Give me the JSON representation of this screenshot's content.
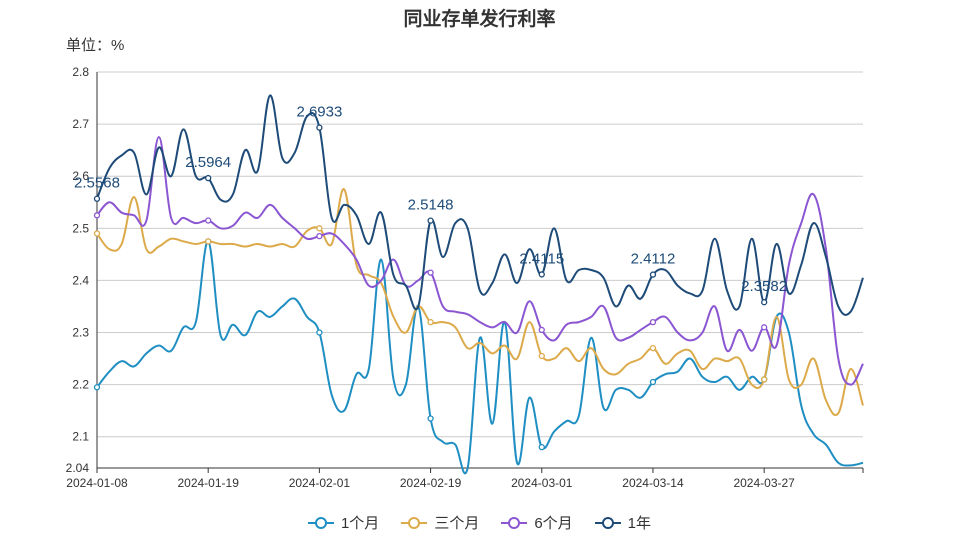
{
  "chart_data": {
    "type": "line",
    "title": "同业存单发行利率",
    "unit_label": "单位：%",
    "xlabel": "",
    "ylabel": "",
    "x_ticks": [
      "2024-01-08",
      "2024-01-19",
      "2024-02-01",
      "2024-02-19",
      "2024-03-01",
      "2024-03-14",
      "2024-03-27"
    ],
    "y_ticks": [
      "2.04",
      "2.1",
      "2.2",
      "2.3",
      "2.4",
      "2.5",
      "2.6",
      "2.7",
      "2.8"
    ],
    "ylim": [
      2.04,
      2.8
    ],
    "grid": true,
    "legend_position": "bottom",
    "series": [
      {
        "name": "1个月",
        "color": "#1f8ec2",
        "values": [
          2.195,
          2.225,
          2.245,
          2.235,
          2.26,
          2.275,
          2.265,
          2.31,
          2.32,
          2.475,
          2.295,
          2.315,
          2.295,
          2.34,
          2.33,
          2.35,
          2.365,
          2.33,
          2.3,
          2.18,
          2.15,
          2.22,
          2.23,
          2.44,
          2.21,
          2.2,
          2.35,
          2.135,
          2.09,
          2.085,
          2.04,
          2.29,
          2.125,
          2.32,
          2.05,
          2.175,
          2.08,
          2.11,
          2.13,
          2.14,
          2.29,
          2.155,
          2.19,
          2.19,
          2.175,
          2.205,
          2.22,
          2.225,
          2.25,
          2.215,
          2.205,
          2.215,
          2.19,
          2.215,
          2.21,
          2.33,
          2.3,
          2.16,
          2.105,
          2.085,
          2.05,
          2.045,
          2.05
        ],
        "labels": []
      },
      {
        "name": "三个月",
        "color": "#dcaa4a",
        "values": [
          2.49,
          2.46,
          2.47,
          2.56,
          2.46,
          2.465,
          2.48,
          2.475,
          2.47,
          2.475,
          2.47,
          2.47,
          2.465,
          2.47,
          2.465,
          2.47,
          2.465,
          2.495,
          2.5,
          2.47,
          2.575,
          2.43,
          2.41,
          2.395,
          2.33,
          2.3,
          2.35,
          2.32,
          2.32,
          2.31,
          2.27,
          2.28,
          2.26,
          2.275,
          2.25,
          2.32,
          2.255,
          2.25,
          2.27,
          2.245,
          2.27,
          2.23,
          2.22,
          2.24,
          2.25,
          2.27,
          2.24,
          2.26,
          2.265,
          2.23,
          2.25,
          2.245,
          2.25,
          2.2,
          2.21,
          2.33,
          2.21,
          2.2,
          2.25,
          2.17,
          2.145,
          2.23,
          2.16
        ],
        "labels": []
      },
      {
        "name": "6个月",
        "color": "#8b56d1",
        "values": [
          2.525,
          2.55,
          2.53,
          2.525,
          2.515,
          2.675,
          2.52,
          2.52,
          2.51,
          2.515,
          2.5,
          2.505,
          2.53,
          2.52,
          2.545,
          2.52,
          2.5,
          2.48,
          2.485,
          2.49,
          2.47,
          2.44,
          2.39,
          2.4,
          2.44,
          2.39,
          2.4,
          2.415,
          2.35,
          2.34,
          2.335,
          2.32,
          2.31,
          2.32,
          2.3,
          2.36,
          2.305,
          2.285,
          2.315,
          2.32,
          2.33,
          2.35,
          2.29,
          2.29,
          2.305,
          2.32,
          2.33,
          2.3,
          2.285,
          2.3,
          2.35,
          2.265,
          2.305,
          2.265,
          2.31,
          2.275,
          2.43,
          2.51,
          2.565,
          2.46,
          2.25,
          2.2,
          2.24
        ],
        "labels": []
      },
      {
        "name": "1年",
        "color": "#1e4b78",
        "values": [
          2.5568,
          2.615,
          2.64,
          2.645,
          2.565,
          2.655,
          2.6,
          2.69,
          2.6,
          2.5964,
          2.555,
          2.565,
          2.65,
          2.61,
          2.755,
          2.635,
          2.645,
          2.715,
          2.6933,
          2.52,
          2.545,
          2.525,
          2.47,
          2.53,
          2.41,
          2.39,
          2.35,
          2.5148,
          2.445,
          2.51,
          2.5,
          2.38,
          2.395,
          2.45,
          2.395,
          2.46,
          2.4115,
          2.5,
          2.4,
          2.42,
          2.42,
          2.405,
          2.35,
          2.39,
          2.365,
          2.4112,
          2.42,
          2.39,
          2.375,
          2.38,
          2.48,
          2.38,
          2.35,
          2.48,
          2.3582,
          2.47,
          2.375,
          2.43,
          2.51,
          2.445,
          2.35,
          2.34,
          2.405
        ],
        "labels": [
          {
            "index": 0,
            "text": "2.5568"
          },
          {
            "index": 9,
            "text": "2.5964"
          },
          {
            "index": 18,
            "text": "2.6933"
          },
          {
            "index": 27,
            "text": "2.5148"
          },
          {
            "index": 36,
            "text": "2.4115"
          },
          {
            "index": 45,
            "text": "2.4112"
          },
          {
            "index": 54,
            "text": "2.3582"
          }
        ]
      }
    ]
  }
}
